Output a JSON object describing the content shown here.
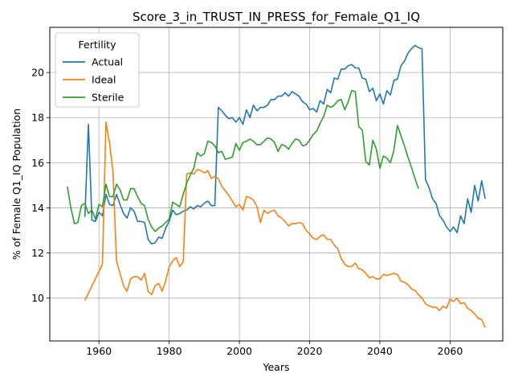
{
  "chart_data": {
    "type": "line",
    "title": "Score_3_in_TRUST_IN_PRESS_for_Female_Q1_IQ",
    "xlabel": "Years",
    "ylabel": "% of Female Q1_IQ Population",
    "xlim": [
      1946,
      2075
    ],
    "ylim": [
      8.1,
      22.0
    ],
    "xticks": [
      1960,
      1980,
      2000,
      2020,
      2040,
      2060
    ],
    "yticks": [
      10,
      12,
      14,
      16,
      18,
      20
    ],
    "grid": true,
    "legend": {
      "title": "Fertility",
      "placement": "top-left"
    },
    "series": [
      {
        "name": "Actual",
        "color": "#1f77b4",
        "x": [
          1956,
          1957,
          1958,
          1959,
          1960,
          1961,
          1962,
          1963,
          1964,
          1965,
          1966,
          1967,
          1968,
          1969,
          1970,
          1971,
          1972,
          1973,
          1974,
          1975,
          1976,
          1977,
          1978,
          1979,
          1980,
          1981,
          1982,
          1983,
          1984,
          1985,
          1986,
          1987,
          1988,
          1989,
          1990,
          1991,
          1992,
          1993,
          1994,
          1995,
          1996,
          1997,
          1998,
          1999,
          2000,
          2001,
          2002,
          2003,
          2004,
          2005,
          2006,
          2007,
          2008,
          2009,
          2010,
          2011,
          2012,
          2013,
          2014,
          2015,
          2016,
          2017,
          2018,
          2019,
          2020,
          2021,
          2022,
          2023,
          2024,
          2025,
          2026,
          2027,
          2028,
          2029,
          2030,
          2031,
          2032,
          2033,
          2034,
          2035,
          2036,
          2037,
          2038,
          2039,
          2040,
          2041,
          2042,
          2043,
          2044,
          2045,
          2046,
          2047,
          2048,
          2049,
          2050,
          2051,
          2052,
          2053,
          2054,
          2055,
          2056,
          2057,
          2058,
          2059,
          2060,
          2061,
          2062,
          2063,
          2064,
          2065,
          2066,
          2067,
          2068,
          2069,
          2070
        ],
        "values": [
          13.6,
          17.7,
          13.45,
          13.4,
          13.8,
          13.65,
          14.6,
          14.15,
          14.1,
          14.6,
          14.15,
          13.75,
          13.55,
          14.0,
          13.85,
          13.4,
          13.4,
          13.35,
          12.6,
          12.4,
          12.45,
          12.7,
          12.65,
          13.1,
          13.4,
          13.9,
          13.7,
          13.75,
          13.85,
          13.9,
          14.05,
          13.95,
          14.1,
          14.05,
          14.2,
          14.3,
          14.1,
          14.1,
          18.45,
          18.3,
          18.1,
          17.95,
          18.0,
          17.8,
          18.0,
          17.7,
          18.35,
          18.0,
          18.55,
          18.3,
          18.45,
          18.45,
          18.55,
          18.8,
          18.8,
          18.95,
          18.95,
          19.1,
          18.95,
          19.15,
          19.05,
          18.95,
          18.7,
          18.6,
          18.35,
          18.4,
          18.25,
          18.75,
          18.6,
          19.25,
          19.1,
          19.75,
          19.7,
          20.15,
          20.15,
          20.3,
          20.35,
          20.2,
          20.2,
          19.75,
          19.7,
          19.15,
          19.3,
          18.75,
          19.05,
          18.6,
          19.2,
          19.0,
          19.65,
          19.7,
          20.3,
          20.5,
          20.85,
          21.05,
          21.2,
          21.1,
          21.05,
          15.25,
          14.9,
          14.4,
          14.2,
          13.65,
          13.45,
          13.15,
          12.95,
          13.15,
          12.9,
          13.65,
          13.3,
          14.4,
          13.8,
          15.0,
          14.3,
          15.2,
          14.4
        ]
      },
      {
        "name": "Ideal",
        "color": "#ff7f0e",
        "x": [
          1956,
          1961,
          1962,
          1963,
          1964,
          1965,
          1966,
          1967,
          1968,
          1969,
          1970,
          1971,
          1972,
          1973,
          1974,
          1975,
          1976,
          1977,
          1978,
          1979,
          1980,
          1981,
          1982,
          1983,
          1984,
          1985,
          1986,
          1987,
          1988,
          1989,
          1990,
          1991,
          1992,
          1993,
          1994,
          1995,
          1996,
          1997,
          1998,
          1999,
          2000,
          2001,
          2002,
          2003,
          2004,
          2005,
          2006,
          2007,
          2008,
          2009,
          2010,
          2011,
          2012,
          2013,
          2014,
          2015,
          2016,
          2017,
          2018,
          2019,
          2020,
          2021,
          2022,
          2023,
          2024,
          2025,
          2026,
          2027,
          2028,
          2029,
          2030,
          2031,
          2032,
          2033,
          2034,
          2035,
          2036,
          2037,
          2038,
          2039,
          2040,
          2041,
          2042,
          2043,
          2044,
          2045,
          2046,
          2047,
          2048,
          2049,
          2050,
          2051,
          2052,
          2053,
          2054,
          2055,
          2056,
          2057,
          2058,
          2059,
          2060,
          2061,
          2062,
          2063,
          2064,
          2065,
          2066,
          2067,
          2068,
          2069,
          2070
        ],
        "values": [
          9.9,
          11.5,
          17.8,
          16.9,
          15.6,
          11.65,
          11.1,
          10.55,
          10.3,
          10.85,
          10.95,
          10.95,
          10.8,
          11.1,
          10.3,
          10.15,
          10.55,
          10.65,
          10.3,
          10.75,
          11.4,
          11.65,
          11.8,
          11.4,
          11.6,
          15.5,
          15.55,
          15.5,
          15.7,
          15.65,
          15.55,
          15.65,
          15.3,
          15.4,
          15.3,
          14.95,
          14.75,
          14.55,
          14.3,
          14.05,
          14.15,
          13.9,
          14.5,
          14.45,
          14.35,
          14.05,
          13.35,
          13.9,
          13.75,
          13.85,
          13.9,
          13.65,
          13.55,
          13.4,
          13.2,
          13.3,
          13.3,
          13.35,
          13.3,
          13.0,
          12.85,
          12.65,
          12.6,
          12.75,
          12.8,
          12.6,
          12.6,
          12.35,
          12.2,
          11.75,
          11.5,
          11.4,
          11.4,
          11.55,
          11.3,
          11.25,
          11.1,
          10.9,
          10.95,
          10.85,
          10.85,
          11.05,
          11.0,
          11.05,
          11.1,
          11.05,
          10.75,
          10.7,
          10.6,
          10.4,
          10.35,
          10.15,
          10.0,
          9.75,
          9.65,
          9.6,
          9.6,
          9.45,
          9.65,
          9.55,
          9.95,
          9.85,
          10.0,
          9.75,
          9.8,
          9.55,
          9.45,
          9.3,
          9.1,
          9.05,
          8.7
        ]
      },
      {
        "name": "Sterile",
        "color": "#2ca02c",
        "x": [
          1951,
          1952,
          1953,
          1954,
          1955,
          1956,
          1957,
          1958,
          1959,
          1960,
          1961,
          1962,
          1963,
          1964,
          1965,
          1966,
          1967,
          1968,
          1969,
          1970,
          1971,
          1972,
          1973,
          1974,
          1975,
          1976,
          1977,
          1978,
          1979,
          1980,
          1981,
          1982,
          1983,
          1984,
          1985,
          1986,
          1987,
          1988,
          1989,
          1990,
          1991,
          1992,
          1993,
          1994,
          1995,
          1996,
          1997,
          1998,
          1999,
          2000,
          2001,
          2002,
          2003,
          2004,
          2005,
          2006,
          2007,
          2008,
          2009,
          2010,
          2011,
          2012,
          2013,
          2014,
          2015,
          2016,
          2017,
          2018,
          2019,
          2020,
          2021,
          2022,
          2023,
          2024,
          2025,
          2026,
          2027,
          2028,
          2029,
          2030,
          2031,
          2032,
          2033,
          2034,
          2035,
          2036,
          2037,
          2038,
          2039,
          2040,
          2041,
          2042,
          2043,
          2044,
          2045,
          2046,
          2047,
          2048,
          2049,
          2050,
          2051
        ],
        "values": [
          14.95,
          14.0,
          13.3,
          13.35,
          14.1,
          14.2,
          13.75,
          13.9,
          13.5,
          14.15,
          14.05,
          15.05,
          14.5,
          14.5,
          15.05,
          14.8,
          14.35,
          14.35,
          14.85,
          14.85,
          14.5,
          14.2,
          14.1,
          13.5,
          13.15,
          12.95,
          13.1,
          13.2,
          13.35,
          13.5,
          14.25,
          14.15,
          14.05,
          14.6,
          15.1,
          15.45,
          15.75,
          16.45,
          16.3,
          16.4,
          16.95,
          16.9,
          16.75,
          16.45,
          16.5,
          16.15,
          16.2,
          16.25,
          16.85,
          16.55,
          16.9,
          16.95,
          17.05,
          16.95,
          16.8,
          16.8,
          16.95,
          17.1,
          17.05,
          16.9,
          16.5,
          16.8,
          16.75,
          16.6,
          16.85,
          17.05,
          17.0,
          16.75,
          16.8,
          17.0,
          17.25,
          17.4,
          17.75,
          18.05,
          18.55,
          18.45,
          18.55,
          18.75,
          18.8,
          18.35,
          18.7,
          19.2,
          19.15,
          17.6,
          17.45,
          16.05,
          15.9,
          17.0,
          16.6,
          15.75,
          16.3,
          16.2,
          16.0,
          16.55,
          17.65,
          17.2,
          16.75,
          16.25,
          15.8,
          15.3,
          14.85
        ]
      }
    ]
  }
}
